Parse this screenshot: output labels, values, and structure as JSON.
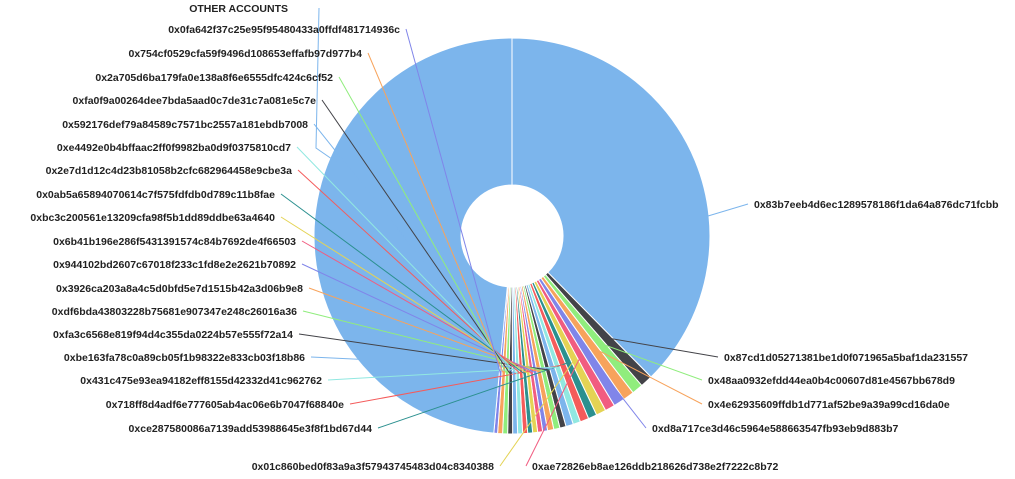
{
  "chart_data": {
    "type": "pie",
    "donut": true,
    "title": "",
    "slices": [
      {
        "label": "0x83b7eeb4d6ec1289578186f1da64a876dc71fcbb",
        "value": 37.2,
        "color": "#7cb5ec"
      },
      {
        "label": "0x87cd1d05271381be1d0f071965a5baf1da231557",
        "value": 1.0,
        "color": "#434348"
      },
      {
        "label": "0x48aa0932efdd44ea0b4c00607d81e4567bb678d9",
        "value": 0.9,
        "color": "#90ed7d"
      },
      {
        "label": "0x4e62935609ffdb1d771af52be9a39a99cd16da0e",
        "value": 0.9,
        "color": "#f7a35c"
      },
      {
        "label": "0xd8a717ce3d46c5964e588663547fb93eb9d883b7",
        "value": 0.9,
        "color": "#8085e9"
      },
      {
        "label": "0xae72826eb8ae126ddb218626d738e2f7222c8b72",
        "value": 0.8,
        "color": "#f15c80"
      },
      {
        "label": "0x01c860bed0f83a9a3f57943745483d04c8340388",
        "value": 0.8,
        "color": "#e4d354"
      },
      {
        "label": "0xce287580086a7139add53988645e3f8f1bd67d44",
        "value": 0.7,
        "color": "#2b908f"
      },
      {
        "label": "0x718ff8d4adf6e777605ab4ac06e6b7047f68840e",
        "value": 0.7,
        "color": "#f45b5b"
      },
      {
        "label": "0x431c475e93ea94182eff8155d42332d41c962762",
        "value": 0.6,
        "color": "#91e8e1"
      },
      {
        "label": "0xbe163fa78c0a89cb05f1b98322e833cb03f18b86",
        "value": 0.6,
        "color": "#7cb5ec"
      },
      {
        "label": "0xfa3c6568e819f94d4c355da0224b57e555f72a14",
        "value": 0.5,
        "color": "#434348"
      },
      {
        "label": "0xdf6bda43803228b75681e907347e248c26016a36",
        "value": 0.5,
        "color": "#90ed7d"
      },
      {
        "label": "0x3926ca203a8a4c5d0bfd5e7d1515b42a3d06b9e8",
        "value": 0.5,
        "color": "#f7a35c"
      },
      {
        "label": "0x944102bd2607c67018f233c1fd8e2e2621b70892",
        "value": 0.4,
        "color": "#8085e9"
      },
      {
        "label": "0x6b41b196e286f5431391574c84b7692de4f66503",
        "value": 0.4,
        "color": "#f15c80"
      },
      {
        "label": "0xbc3c200561e13209cfa98f5b1dd89ddbe63a4640",
        "value": 0.4,
        "color": "#e4d354"
      },
      {
        "label": "0x0ab5a65894070614c7f575fdfdb0d789c11b8fae",
        "value": 0.4,
        "color": "#2b908f"
      },
      {
        "label": "0x2e7d1d12c4d23b81058b2cfc682964458e9cbe3a",
        "value": 0.4,
        "color": "#f45b5b"
      },
      {
        "label": "0xe4492e0b4bffaac2ff0f9982ba0d9f0375810cd7",
        "value": 0.4,
        "color": "#91e8e1"
      },
      {
        "label": "0x592176def79a84589c7571bc2557a181ebdb7008",
        "value": 0.4,
        "color": "#7cb5ec"
      },
      {
        "label": "0xfa0f9a00264dee7bda5aad0c7de31c7a081e5c7e",
        "value": 0.4,
        "color": "#434348"
      },
      {
        "label": "0x2a705d6ba179fa0e138a8f6e6555dfc424c6cf52",
        "value": 0.4,
        "color": "#90ed7d"
      },
      {
        "label": "0x754cf0529cfa59f9496d108653effafb97d977b4",
        "value": 0.4,
        "color": "#f7a35c"
      },
      {
        "label": "0x0fa642f37c25e95f95480433a0ffdf481714936c",
        "value": 0.3,
        "color": "#8085e9"
      },
      {
        "label": "OTHER ACCOUNTS",
        "value": 48.0,
        "color": "#7cb5ec"
      }
    ],
    "legend": "none"
  }
}
